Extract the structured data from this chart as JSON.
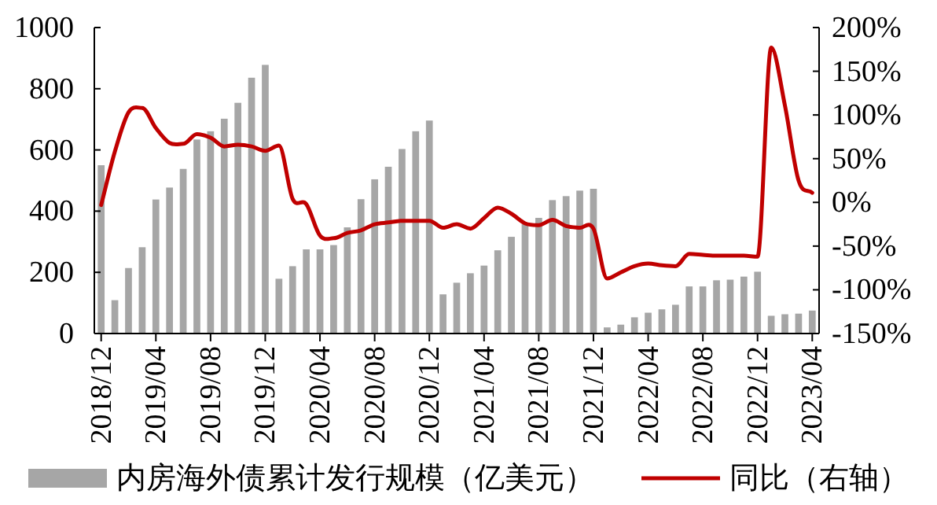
{
  "chart_data": {
    "type": "bar",
    "categories": [
      "2018/12",
      null,
      null,
      null,
      "2019/04",
      null,
      null,
      null,
      "2019/08",
      null,
      null,
      null,
      "2019/12",
      null,
      null,
      null,
      "2020/04",
      null,
      null,
      null,
      "2020/08",
      null,
      null,
      null,
      "2020/12",
      null,
      null,
      null,
      "2021/04",
      null,
      null,
      null,
      "2021/08",
      null,
      null,
      null,
      "2021/12",
      null,
      null,
      null,
      "2022/04",
      null,
      null,
      null,
      "2022/08",
      null,
      null,
      null,
      "2022/12",
      null,
      null,
      null,
      "2023/04"
    ],
    "series": [
      {
        "name": "内房海外债累计发行规模（亿美元）",
        "color": "#a6a6a6",
        "values": [
          550,
          109,
          214,
          282,
          438,
          477,
          538,
          634,
          661,
          702,
          754,
          836,
          878,
          179,
          220,
          275,
          275,
          289,
          347,
          439,
          504,
          545,
          603,
          661,
          696,
          128,
          166,
          197,
          222,
          272,
          316,
          357,
          378,
          436,
          449,
          467,
          473,
          20,
          29,
          53,
          68,
          79,
          94,
          154,
          154,
          174,
          176,
          186,
          202,
          58,
          63,
          65,
          75
        ]
      },
      {
        "name": "同比（右轴）",
        "type": "line",
        "axis": "y2",
        "color": "#c00000",
        "values": [
          -3,
          58,
          103,
          108,
          85,
          68,
          67,
          78,
          74,
          64,
          66,
          64,
          59,
          65,
          4,
          -2,
          -38,
          -41,
          -35,
          -32,
          -25,
          -23,
          -21,
          -21,
          -21,
          -29,
          -25,
          -30,
          -18,
          -6,
          -13,
          -24,
          -26,
          -20,
          -27,
          -29,
          -30,
          -87,
          -80,
          -73,
          -70,
          -72,
          -73,
          -59,
          -60,
          -61,
          -61,
          -61,
          -62,
          177,
          111,
          25,
          11
        ]
      }
    ],
    "ylim": [
      0,
      1000
    ],
    "yticks": [
      0,
      200,
      400,
      600,
      800,
      1000
    ],
    "y2lim": [
      -150,
      200
    ],
    "y2ticks": [
      {
        "value": -150,
        "label": "-150%"
      },
      {
        "value": -100,
        "label": "-100%"
      },
      {
        "value": -50,
        "label": "-50%"
      },
      {
        "value": 0,
        "label": "0%"
      },
      {
        "value": 50,
        "label": "50%"
      },
      {
        "value": 100,
        "label": "100%"
      },
      {
        "value": 150,
        "label": "150%"
      },
      {
        "value": 200,
        "label": "200%"
      }
    ],
    "legend": "bottom",
    "grid": false
  }
}
